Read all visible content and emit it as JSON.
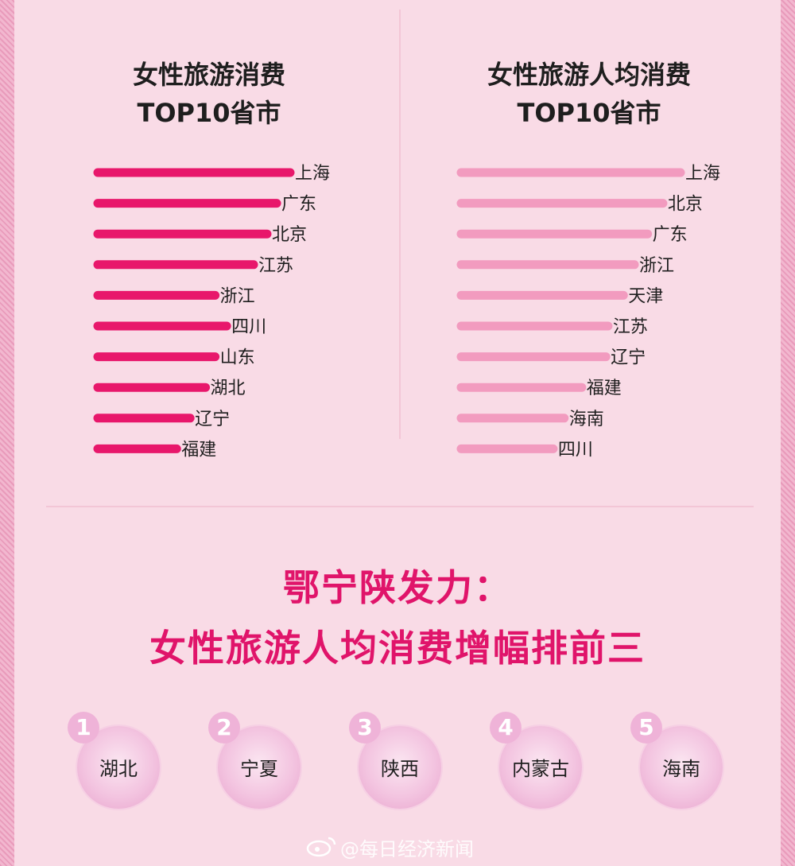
{
  "chart_data": [
    {
      "type": "bar",
      "title": "女性旅游消费\nTOP10省市",
      "categories": [
        "上海",
        "广东",
        "北京",
        "江苏",
        "浙江",
        "四川",
        "山东",
        "湖北",
        "辽宁",
        "福建"
      ],
      "values": [
        100,
        93,
        88,
        81,
        61,
        67,
        61,
        56,
        48,
        41
      ],
      "color": "#e8176b"
    },
    {
      "type": "bar",
      "title": "女性旅游人均消费\nTOP10省市",
      "categories": [
        "上海",
        "北京",
        "广东",
        "浙江",
        "天津",
        "江苏",
        "辽宁",
        "福建",
        "海南",
        "四川"
      ],
      "values": [
        100,
        92,
        85,
        79,
        74,
        67,
        66,
        55,
        47,
        42
      ],
      "color": "#f29bbf"
    }
  ],
  "left_title": {
    "line1": "女性旅游消费",
    "line2": "TOP10省市"
  },
  "right_title": {
    "line1": "女性旅游人均消费",
    "line2": "TOP10省市"
  },
  "section": {
    "line1": "鄂宁陕发力：",
    "line2": "女性旅游人均消费增幅排前三"
  },
  "ranking": [
    {
      "rank": "1",
      "name": "湖北"
    },
    {
      "rank": "2",
      "name": "宁夏"
    },
    {
      "rank": "3",
      "name": "陕西"
    },
    {
      "rank": "4",
      "name": "内蒙古"
    },
    {
      "rank": "5",
      "name": "海南"
    }
  ],
  "watermark": "@每日经济新闻"
}
